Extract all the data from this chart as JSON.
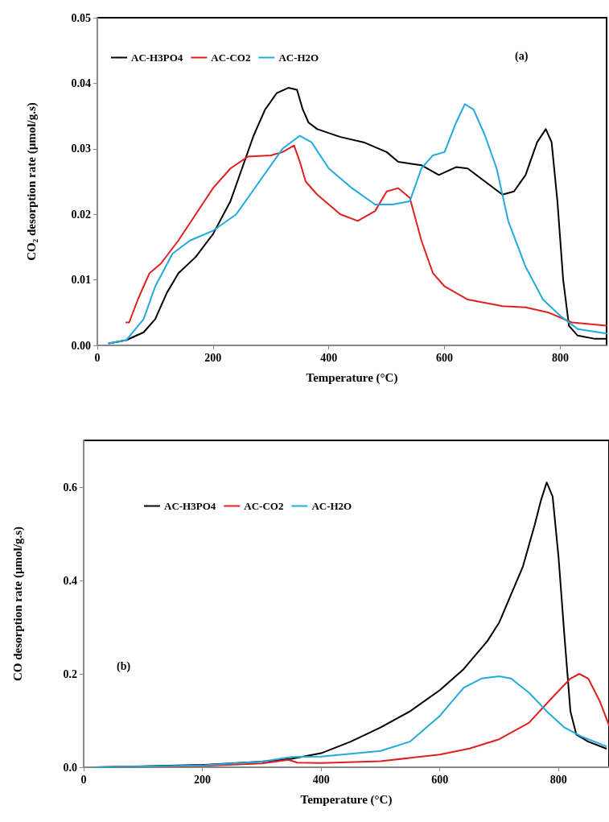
{
  "chart_data": [
    {
      "type": "line",
      "xlabel": "Temperature (°C)",
      "ylabel": "CO₂ desorption rate (µmol/g.s)",
      "annotations": [
        "(a)"
      ],
      "xlim": [
        0,
        880
      ],
      "xticks": [
        0,
        200,
        400,
        600,
        800
      ],
      "ylim": [
        0,
        0.05
      ],
      "yticks": [
        {
          "value": 0,
          "label": "0.00"
        },
        {
          "value": 0.01,
          "label": "0.01"
        },
        {
          "value": 0.02,
          "label": "0.02"
        },
        {
          "value": 0.03,
          "label": "0.03"
        },
        {
          "value": 0.04,
          "label": "0.04"
        },
        {
          "value": 0.05,
          "label": "0.05"
        }
      ],
      "grid": false,
      "legend": "top left",
      "marker": "none",
      "line_style": "solid",
      "series": [
        {
          "name": "AC-H3PO4",
          "color": "#000000",
          "x": [
            20,
            50,
            80,
            100,
            120,
            140,
            170,
            200,
            230,
            250,
            270,
            290,
            310,
            330,
            345,
            355,
            365,
            380,
            420,
            460,
            500,
            520,
            560,
            590,
            620,
            640,
            670,
            700,
            720,
            740,
            760,
            775,
            785,
            795,
            805,
            815,
            830,
            860,
            880
          ],
          "values": [
            0.0003,
            0.0008,
            0.002,
            0.004,
            0.008,
            0.011,
            0.0135,
            0.017,
            0.022,
            0.027,
            0.032,
            0.036,
            0.0385,
            0.0393,
            0.039,
            0.036,
            0.034,
            0.033,
            0.0318,
            0.031,
            0.0295,
            0.028,
            0.0275,
            0.026,
            0.0272,
            0.027,
            0.025,
            0.023,
            0.0235,
            0.026,
            0.031,
            0.033,
            0.031,
            0.022,
            0.01,
            0.003,
            0.0015,
            0.001,
            0.001
          ]
        },
        {
          "name": "AC-CO2",
          "color": "#e02020",
          "x": [
            50,
            55,
            70,
            90,
            110,
            140,
            170,
            200,
            230,
            260,
            300,
            320,
            340,
            350,
            360,
            380,
            420,
            450,
            480,
            500,
            520,
            540,
            560,
            580,
            600,
            640,
            700,
            740,
            780,
            820,
            880
          ],
          "values": [
            0.0035,
            0.0035,
            0.007,
            0.011,
            0.0125,
            0.016,
            0.02,
            0.024,
            0.027,
            0.0288,
            0.029,
            0.0295,
            0.0305,
            0.028,
            0.025,
            0.023,
            0.02,
            0.019,
            0.0205,
            0.0235,
            0.024,
            0.0225,
            0.016,
            0.011,
            0.009,
            0.007,
            0.006,
            0.0058,
            0.005,
            0.0035,
            0.003
          ]
        },
        {
          "name": "AC-H2O",
          "color": "#22aadd",
          "x": [
            20,
            50,
            80,
            100,
            130,
            160,
            200,
            240,
            280,
            320,
            350,
            370,
            400,
            440,
            480,
            510,
            540,
            560,
            580,
            600,
            620,
            635,
            650,
            670,
            690,
            710,
            740,
            770,
            800,
            830,
            880
          ],
          "values": [
            0.0003,
            0.0008,
            0.004,
            0.009,
            0.014,
            0.016,
            0.0175,
            0.02,
            0.025,
            0.03,
            0.032,
            0.031,
            0.027,
            0.024,
            0.0215,
            0.0215,
            0.022,
            0.027,
            0.029,
            0.0295,
            0.034,
            0.0368,
            0.036,
            0.032,
            0.027,
            0.019,
            0.012,
            0.007,
            0.0045,
            0.0025,
            0.0018
          ]
        }
      ]
    },
    {
      "type": "line",
      "xlabel": "Temperature (°C)",
      "ylabel": "CO desorption rate (µmol/g.s)",
      "annotations": [
        "(b)"
      ],
      "xlim": [
        0,
        885
      ],
      "xticks": [
        0,
        200,
        400,
        600,
        800
      ],
      "ylim": [
        0,
        0.7
      ],
      "yticks": [
        {
          "value": 0,
          "label": "0.0"
        },
        {
          "value": 0.2,
          "label": "0.2"
        },
        {
          "value": 0.4,
          "label": "0.4"
        },
        {
          "value": 0.6,
          "label": "0.6"
        }
      ],
      "grid": false,
      "legend": "top left",
      "marker": "none",
      "line_style": "solid",
      "series": [
        {
          "name": "AC-H3PO4",
          "color": "#000000",
          "x": [
            20,
            100,
            200,
            300,
            350,
            400,
            450,
            500,
            550,
            600,
            640,
            680,
            700,
            720,
            740,
            760,
            770,
            780,
            790,
            800,
            810,
            820,
            830,
            850,
            880
          ],
          "values": [
            0,
            0.002,
            0.005,
            0.012,
            0.018,
            0.03,
            0.055,
            0.085,
            0.12,
            0.165,
            0.21,
            0.27,
            0.31,
            0.37,
            0.43,
            0.52,
            0.57,
            0.61,
            0.58,
            0.45,
            0.28,
            0.12,
            0.07,
            0.055,
            0.04
          ]
        },
        {
          "name": "AC-CO2",
          "color": "#e02020",
          "x": [
            20,
            200,
            300,
            345,
            360,
            400,
            500,
            600,
            650,
            700,
            750,
            790,
            820,
            835,
            850,
            870,
            885
          ],
          "values": [
            0,
            0.003,
            0.008,
            0.016,
            0.01,
            0.009,
            0.013,
            0.027,
            0.04,
            0.06,
            0.095,
            0.15,
            0.19,
            0.2,
            0.19,
            0.14,
            0.09
          ]
        },
        {
          "name": "AC-H2O",
          "color": "#22aadd",
          "x": [
            20,
            200,
            300,
            350,
            400,
            500,
            550,
            600,
            640,
            670,
            700,
            720,
            750,
            780,
            810,
            840,
            880
          ],
          "values": [
            0,
            0.004,
            0.012,
            0.022,
            0.023,
            0.035,
            0.055,
            0.11,
            0.17,
            0.19,
            0.195,
            0.19,
            0.16,
            0.12,
            0.085,
            0.065,
            0.045
          ]
        }
      ]
    }
  ]
}
